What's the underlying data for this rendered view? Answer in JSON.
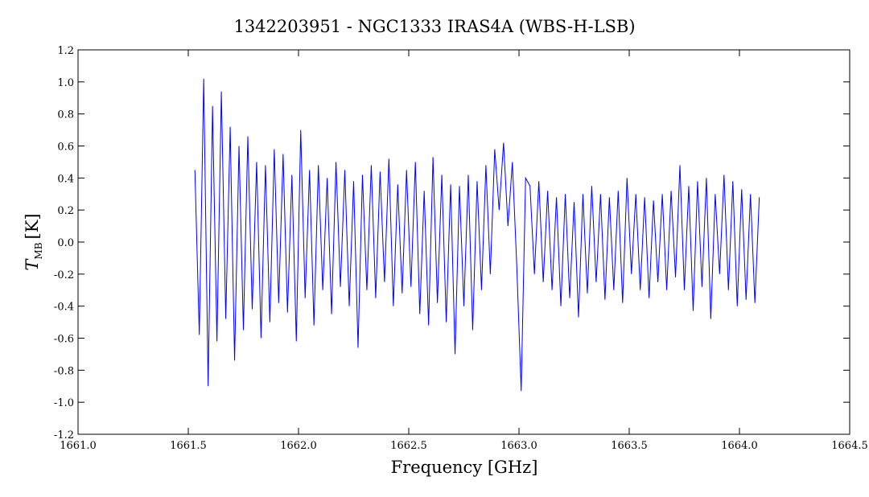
{
  "chart_data": {
    "type": "line",
    "title": "1342203951 - NGC1333 IRAS4A (WBS-H-LSB)",
    "xlabel": "Frequency [GHz]",
    "ylabel": "T",
    "ylabel_sub": "MB",
    "ylabel_unit": "[K]",
    "xlim": [
      1661.0,
      1664.5
    ],
    "xticks": [
      {
        "value": 1661.0,
        "label": "1661.0"
      },
      {
        "value": 1661.5,
        "label": "1661.5"
      },
      {
        "value": 1662.0,
        "label": "1662.0"
      },
      {
        "value": 1662.5,
        "label": "1662.5"
      },
      {
        "value": 1663.0,
        "label": "1663.0"
      },
      {
        "value": 1663.5,
        "label": "1663.5"
      },
      {
        "value": 1664.0,
        "label": "1664.0"
      },
      {
        "value": 1664.5,
        "label": "1664.5"
      }
    ],
    "ylim": [
      -1.2,
      1.2
    ],
    "yticks": [
      -1.2,
      {
        "value": -1.0,
        "label": "-1.0"
      },
      -0.8,
      -0.6,
      -0.4,
      -0.2,
      {
        "value": 0.0,
        "label": "0.0"
      },
      0.2,
      0.4,
      0.6,
      0.8,
      {
        "value": 1.0,
        "label": "1.0"
      },
      1.2
    ],
    "grid": false,
    "series": [
      {
        "color": "#0000ff",
        "x": [
          1661.53,
          1661.55,
          1661.57,
          1661.59,
          1661.61,
          1661.63,
          1661.65,
          1661.67,
          1661.69,
          1661.71,
          1661.73,
          1661.75,
          1661.77,
          1661.79,
          1661.81,
          1661.83,
          1661.85,
          1661.87,
          1661.89,
          1661.91,
          1661.93,
          1661.95,
          1661.97,
          1661.99,
          1662.01,
          1662.03,
          1662.05,
          1662.07,
          1662.09,
          1662.11,
          1662.13,
          1662.15,
          1662.17,
          1662.19,
          1662.21,
          1662.23,
          1662.25,
          1662.27,
          1662.29,
          1662.31,
          1662.33,
          1662.35,
          1662.37,
          1662.39,
          1662.41,
          1662.43,
          1662.45,
          1662.47,
          1662.49,
          1662.51,
          1662.53,
          1662.55,
          1662.57,
          1662.59,
          1662.61,
          1662.63,
          1662.65,
          1662.67,
          1662.69,
          1662.71,
          1662.73,
          1662.75,
          1662.77,
          1662.79,
          1662.81,
          1662.83,
          1662.85,
          1662.87,
          1662.89,
          1662.91,
          1662.93,
          1662.95,
          1662.97,
          1662.99,
          1663.01,
          1663.03,
          1663.05,
          1663.07,
          1663.09,
          1663.11,
          1663.13,
          1663.15,
          1663.17,
          1663.19,
          1663.21,
          1663.23,
          1663.25,
          1663.27,
          1663.29,
          1663.31,
          1663.33,
          1663.35,
          1663.37,
          1663.39,
          1663.41,
          1663.43,
          1663.45,
          1663.47,
          1663.49,
          1663.51,
          1663.53,
          1663.55,
          1663.57,
          1663.59,
          1663.61,
          1663.63,
          1663.65,
          1663.67,
          1663.69,
          1663.71,
          1663.73,
          1663.75,
          1663.77,
          1663.79,
          1663.81,
          1663.83,
          1663.85,
          1663.87,
          1663.89,
          1663.91,
          1663.93,
          1663.95,
          1663.97,
          1663.99,
          1664.01,
          1664.03,
          1664.05,
          1664.07,
          1664.09
        ],
        "values": [
          0.45,
          -0.58,
          1.02,
          -0.9,
          0.85,
          -0.62,
          0.94,
          -0.48,
          0.72,
          -0.74,
          0.6,
          -0.55,
          0.66,
          -0.42,
          0.5,
          -0.6,
          0.48,
          -0.5,
          0.58,
          -0.38,
          0.55,
          -0.44,
          0.42,
          -0.62,
          0.7,
          -0.35,
          0.45,
          -0.52,
          0.48,
          -0.3,
          0.4,
          -0.45,
          0.5,
          -0.28,
          0.45,
          -0.4,
          0.38,
          -0.66,
          0.42,
          -0.3,
          0.48,
          -0.35,
          0.44,
          -0.25,
          0.52,
          -0.4,
          0.36,
          -0.32,
          0.45,
          -0.28,
          0.5,
          -0.45,
          0.32,
          -0.52,
          0.53,
          -0.38,
          0.42,
          -0.5,
          0.36,
          -0.7,
          0.35,
          -0.4,
          0.42,
          -0.55,
          0.38,
          -0.3,
          0.48,
          -0.2,
          0.58,
          0.2,
          0.62,
          0.1,
          0.5,
          -0.15,
          -0.93,
          0.4,
          0.35,
          -0.2,
          0.38,
          -0.25,
          0.32,
          -0.3,
          0.28,
          -0.4,
          0.3,
          -0.35,
          0.25,
          -0.47,
          0.3,
          -0.32,
          0.35,
          -0.25,
          0.3,
          -0.36,
          0.28,
          -0.3,
          0.32,
          -0.38,
          0.4,
          -0.2,
          0.3,
          -0.3,
          0.28,
          -0.35,
          0.26,
          -0.25,
          0.3,
          -0.3,
          0.32,
          -0.22,
          0.48,
          -0.3,
          0.35,
          -0.43,
          0.38,
          -0.28,
          0.4,
          -0.48,
          0.3,
          -0.2,
          0.42,
          -0.3,
          0.38,
          -0.4,
          0.33,
          -0.36,
          0.3,
          -0.38,
          0.28
        ]
      }
    ]
  }
}
